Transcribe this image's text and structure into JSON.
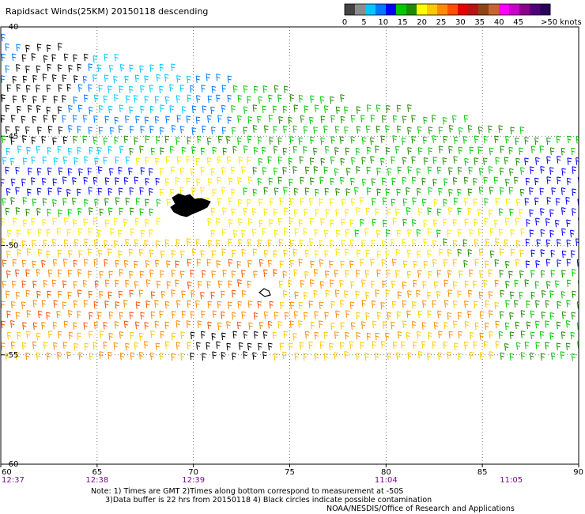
{
  "title": "Rapidsact Winds(25KM) 20150118 descending",
  "legend": {
    "ticks": [
      "0",
      "5",
      "10",
      "15",
      "20",
      "25",
      "30",
      "35",
      "40",
      "45",
      ">50 knots"
    ],
    "colors": [
      "#444444",
      "#8c8c8c",
      "#00c8ff",
      "#0078ff",
      "#0000ff",
      "#00c800",
      "#1e8c00",
      "#ffff00",
      "#ffc800",
      "#ff8c00",
      "#ff5000",
      "#e60000",
      "#b41414",
      "#8c4614",
      "#c86432",
      "#ff00ff",
      "#c800c8",
      "#8c008c",
      "#500078",
      "#28005a"
    ]
  },
  "chart_data": {
    "type": "wind-barb-map",
    "title": "Rapidsact Winds(25KM) 20150118 descending",
    "units": "knots",
    "x_ticks": [
      "60",
      "65",
      "70",
      "75",
      "80",
      "85",
      "90"
    ],
    "y_ticks": [
      "-40",
      "-45",
      "-50",
      "-55",
      "-60"
    ],
    "xlim": [
      60,
      90
    ],
    "ylim": [
      -60,
      -40
    ],
    "grid": true,
    "time_labels": [
      {
        "lon": 60,
        "time": "12:37"
      },
      {
        "lon": 65,
        "time": "12:38"
      },
      {
        "lon": 70,
        "time": "12:39"
      },
      {
        "lon": 80,
        "time": "11:04"
      },
      {
        "lon": 86.5,
        "time": "11:05"
      }
    ],
    "wind_regions": [
      {
        "lat": [
          -40,
          -47
        ],
        "lon": [
          62,
          65
        ],
        "speed_range": "0-5 knots"
      },
      {
        "lat": [
          -42,
          -49
        ],
        "lon": [
          60,
          72
        ],
        "speed_range": "10-15 knots"
      },
      {
        "lat": [
          -44,
          -51
        ],
        "lon": [
          65,
          90
        ],
        "speed_range": "15-20 knots"
      },
      {
        "lat": [
          -47,
          -53
        ],
        "lon": [
          68,
          88
        ],
        "speed_range": "20-25 knots"
      },
      {
        "lat": [
          -50,
          -57
        ],
        "lon": [
          60,
          80
        ],
        "speed_range": "25-35 knots"
      },
      {
        "lat": [
          -53,
          -57
        ],
        "lon": [
          85,
          90
        ],
        "speed_range": "15-20 knots"
      }
    ]
  },
  "notes": [
    "Note: 1) Times are GMT 2)Times along bottom correspond to measurement at -50S",
    "      3)Data buffer is 22 hrs from 20150118 4) Black circles indicate possible contamination"
  ],
  "credit": "NOAA/NESDIS/Office of Research and Applications"
}
